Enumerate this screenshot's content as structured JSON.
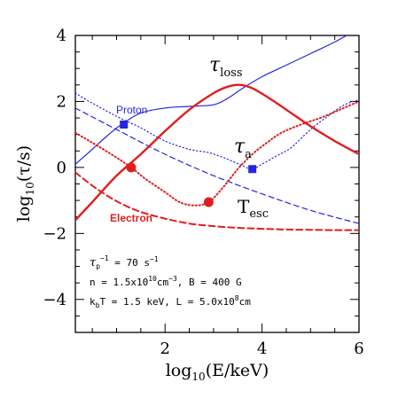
{
  "chart_data": {
    "type": "line",
    "xlabel_main": "log",
    "xlabel_sub": "10",
    "xlabel_rest": "(E/keV)",
    "ylabel_main": "log",
    "ylabel_sub": "10",
    "ylabel_rest": "(τ/s)",
    "xlim": [
      0.15,
      6.0
    ],
    "ylim": [
      -5.0,
      4.0
    ],
    "x_ticks": [
      2,
      4,
      6
    ],
    "x_tick_labels": [
      "2",
      "4",
      "6"
    ],
    "y_ticks": [
      -4,
      -2,
      0,
      2,
      4
    ],
    "y_tick_labels": [
      "−4",
      "−2",
      "0",
      "2",
      "4"
    ],
    "colors": {
      "proton": "#2525e0",
      "electron": "#e01e1e",
      "axis": "#000000"
    },
    "series": [
      {
        "name": "Proton",
        "color": "#2525e0",
        "curves": [
          {
            "role": "τ_loss",
            "style": "solid",
            "x": [
              0.15,
              0.5,
              0.8,
              1.1,
              1.5,
              2.0,
              2.5,
              3.0,
              3.3,
              3.6,
              4.0,
              4.5,
              5.0,
              5.5,
              5.8
            ],
            "y": [
              0.1,
              0.55,
              0.95,
              1.3,
              1.65,
              1.8,
              1.85,
              1.9,
              2.1,
              2.4,
              2.75,
              3.1,
              3.45,
              3.8,
              4.05
            ]
          },
          {
            "role": "τ_a",
            "style": "dotted",
            "x": [
              0.15,
              0.5,
              1.0,
              1.5,
              2.0,
              2.5,
              2.9,
              3.2,
              3.45,
              3.6,
              3.8,
              4.0,
              4.3,
              4.6,
              5.0,
              5.4,
              5.7,
              6.0
            ],
            "y": [
              2.25,
              1.95,
              1.55,
              1.2,
              0.8,
              0.55,
              0.45,
              0.3,
              0.15,
              0.05,
              -0.05,
              0.1,
              0.35,
              0.6,
              1.15,
              1.6,
              1.9,
              2.05
            ]
          },
          {
            "role": "T_esc",
            "style": "dashed",
            "x": [
              0.15,
              1.0,
              2.0,
              3.0,
              4.0,
              5.0,
              6.0
            ],
            "y": [
              1.8,
              1.15,
              0.4,
              -0.25,
              -0.8,
              -1.3,
              -1.7
            ]
          }
        ],
        "markers": [
          {
            "x": 1.15,
            "y": 1.3
          },
          {
            "x": 3.8,
            "y": -0.05
          }
        ]
      },
      {
        "name": "Electron",
        "color": "#e01e1e",
        "curves": [
          {
            "role": "τ_loss",
            "style": "solid",
            "x": [
              0.15,
              0.5,
              1.0,
              1.5,
              2.0,
              2.5,
              3.0,
              3.3,
              3.55,
              3.8,
              4.2,
              4.6,
              5.0,
              5.5,
              6.0
            ],
            "y": [
              -1.6,
              -1.05,
              -0.25,
              0.4,
              1.1,
              1.75,
              2.25,
              2.45,
              2.5,
              2.4,
              2.05,
              1.65,
              1.25,
              0.8,
              0.4
            ]
          },
          {
            "role": "τ_a",
            "style": "dotted",
            "x": [
              0.15,
              0.5,
              1.0,
              1.3,
              1.6,
              2.0,
              2.3,
              2.6,
              2.9,
              3.2,
              3.5,
              3.8,
              4.1,
              4.4,
              4.8,
              5.2,
              5.6,
              6.0
            ],
            "y": [
              1.05,
              0.75,
              0.3,
              0.0,
              -0.35,
              -0.75,
              -1.05,
              -1.15,
              -1.05,
              -0.6,
              -0.05,
              0.4,
              0.75,
              1.05,
              1.3,
              1.5,
              1.75,
              2.0
            ]
          },
          {
            "role": "T_esc",
            "style": "dashed",
            "x": [
              0.15,
              0.5,
              0.8,
              1.1,
              1.5,
              2.0,
              2.5,
              3.0,
              3.5,
              4.0,
              4.5,
              5.0,
              5.5,
              6.0
            ],
            "y": [
              -0.15,
              -0.55,
              -0.85,
              -1.1,
              -1.35,
              -1.55,
              -1.7,
              -1.78,
              -1.83,
              -1.86,
              -1.88,
              -1.89,
              -1.9,
              -1.9
            ]
          }
        ],
        "markers": [
          {
            "x": 1.3,
            "y": 0.0
          },
          {
            "x": 2.9,
            "y": -1.05
          }
        ]
      }
    ],
    "labels": {
      "tau_loss_symbol": "τ",
      "tau_loss_sub": "loss",
      "tau_a_symbol": "τ",
      "tau_a_sub": "a",
      "tesc_symbol": "T",
      "tesc_sub": "esc",
      "proton": "Proton",
      "electron": "Electron"
    },
    "annotations": {
      "line1_a": "τ",
      "line1_b": "p",
      "line1_c": "−1",
      "line1_d": " = 70 s",
      "line1_e": "−1",
      "line2_a": "n = 1.5x10",
      "line2_b": "10",
      "line2_c": "cm",
      "line2_d": "−3",
      "line2_e": ", B = 400 G",
      "line3_a": "k",
      "line3_b": "b",
      "line3_c": "T = 1.5 keV, L = 5.0x10",
      "line3_d": "8",
      "line3_e": "cm"
    }
  }
}
